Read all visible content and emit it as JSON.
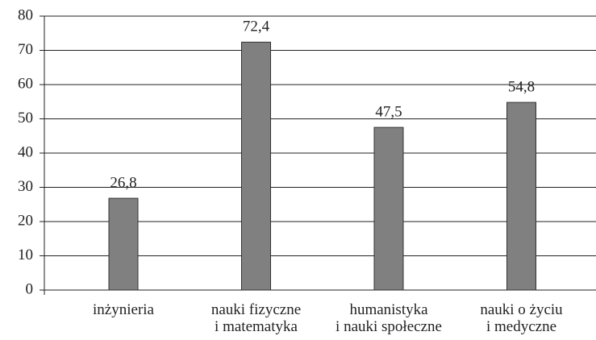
{
  "chart_data": {
    "type": "bar",
    "categories": [
      "inżynieria",
      "nauki fizyczne\ni matematyka",
      "humanistyka\ni nauki społeczne",
      "nauki o życiu\ni medyczne"
    ],
    "values": [
      26.8,
      72.4,
      47.5,
      54.8
    ],
    "value_labels": [
      "26,8",
      "72,4",
      "47,5",
      "54,8"
    ],
    "color": "#808080",
    "ylim": [
      0,
      80
    ],
    "yticks": [
      0,
      10,
      20,
      30,
      40,
      50,
      60,
      70,
      80
    ],
    "grid": true
  }
}
